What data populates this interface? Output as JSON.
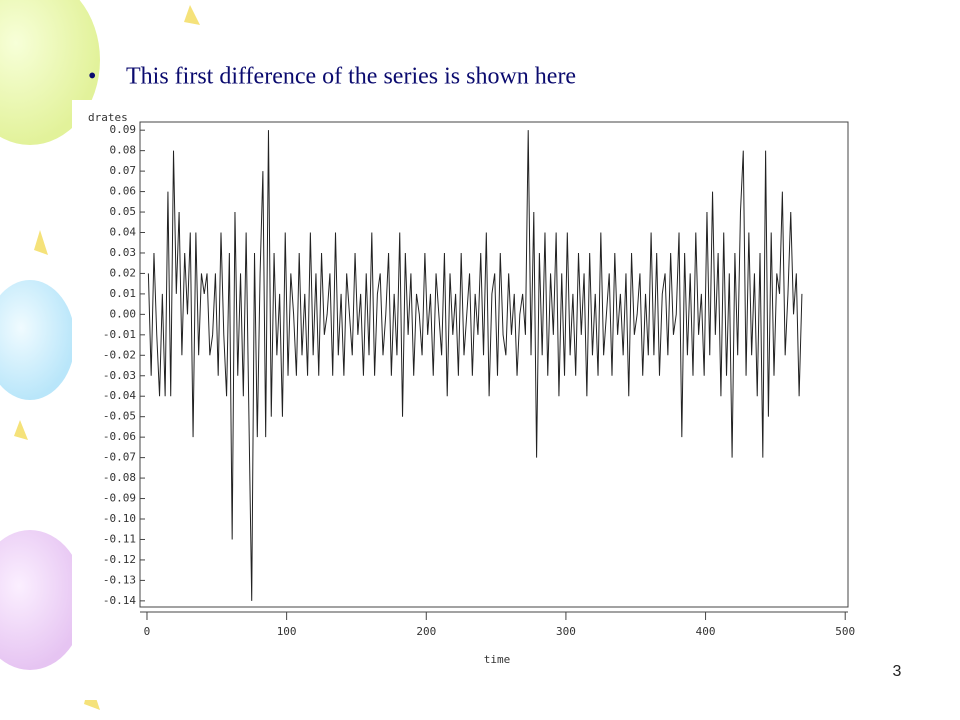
{
  "slide": {
    "bullet_text": "This first difference of the series is shown here",
    "page_number": "3"
  },
  "chart_data": {
    "type": "line",
    "y_label": "drates",
    "x_label": "time",
    "color": "#222222",
    "xlim": [
      -5,
      502
    ],
    "xticks": [
      0,
      100,
      200,
      300,
      400,
      500
    ],
    "ylim": [
      -0.143,
      0.094
    ],
    "yticks": [
      0.09,
      0.08,
      0.07,
      0.06,
      0.05,
      0.04,
      0.03,
      0.02,
      0.01,
      {
        "value": 0,
        "label": "0.00"
      },
      -0.01,
      -0.02,
      -0.03,
      -0.04,
      -0.05,
      -0.06,
      -0.07,
      -0.08,
      -0.09,
      {
        "value": -0.1,
        "label": "-0.10"
      },
      -0.11,
      -0.12,
      -0.13,
      -0.14
    ],
    "x": [
      1,
      3,
      5,
      7,
      9,
      11,
      13,
      15,
      17,
      19,
      21,
      23,
      25,
      27,
      29,
      31,
      33,
      35,
      37,
      39,
      41,
      43,
      45,
      47,
      49,
      51,
      53,
      55,
      57,
      59,
      61,
      63,
      65,
      67,
      69,
      71,
      73,
      75,
      77,
      79,
      81,
      83,
      85,
      87,
      89,
      91,
      93,
      95,
      97,
      99,
      101,
      103,
      105,
      107,
      109,
      111,
      113,
      115,
      117,
      119,
      121,
      123,
      125,
      127,
      129,
      131,
      133,
      135,
      137,
      139,
      141,
      143,
      145,
      147,
      149,
      151,
      153,
      155,
      157,
      159,
      161,
      163,
      165,
      167,
      169,
      171,
      173,
      175,
      177,
      179,
      181,
      183,
      185,
      187,
      189,
      191,
      193,
      195,
      197,
      199,
      201,
      203,
      205,
      207,
      209,
      211,
      213,
      215,
      217,
      219,
      221,
      223,
      225,
      227,
      229,
      231,
      233,
      235,
      237,
      239,
      241,
      243,
      245,
      247,
      249,
      251,
      253,
      255,
      257,
      259,
      261,
      263,
      265,
      267,
      269,
      271,
      273,
      275,
      277,
      279,
      281,
      283,
      285,
      287,
      289,
      291,
      293,
      295,
      297,
      299,
      301,
      303,
      305,
      307,
      309,
      311,
      313,
      315,
      317,
      319,
      321,
      323,
      325,
      327,
      329,
      331,
      333,
      335,
      337,
      339,
      341,
      343,
      345,
      347,
      349,
      351,
      353,
      355,
      357,
      359,
      361,
      363,
      365,
      367,
      369,
      371,
      373,
      375,
      377,
      379,
      381,
      383,
      385,
      387,
      389,
      391,
      393,
      395,
      397,
      399,
      401,
      403,
      405,
      407,
      409,
      411,
      413,
      415,
      417,
      419,
      421,
      423,
      425,
      427,
      429,
      431,
      433,
      435,
      437,
      439,
      441,
      443,
      445,
      447,
      449,
      451,
      453,
      455,
      457,
      459,
      461,
      463,
      465,
      467,
      469
    ],
    "values": [
      0.02,
      -0.03,
      0.03,
      -0.01,
      -0.04,
      0.01,
      -0.04,
      0.06,
      -0.04,
      0.08,
      0.01,
      0.05,
      -0.02,
      0.03,
      0.0,
      0.04,
      -0.06,
      0.04,
      -0.02,
      0.02,
      0.01,
      0.02,
      -0.02,
      -0.01,
      0.02,
      -0.03,
      0.04,
      -0.01,
      -0.04,
      0.03,
      -0.11,
      0.05,
      -0.03,
      0.02,
      -0.04,
      0.04,
      -0.05,
      -0.14,
      0.03,
      -0.06,
      0.02,
      0.07,
      -0.06,
      0.09,
      -0.05,
      0.03,
      -0.02,
      0.01,
      -0.05,
      0.04,
      -0.03,
      0.02,
      0.0,
      -0.03,
      0.03,
      -0.02,
      0.01,
      -0.03,
      0.04,
      -0.02,
      0.02,
      -0.03,
      0.03,
      -0.01,
      0.0,
      0.02,
      -0.03,
      0.04,
      -0.02,
      0.01,
      -0.03,
      0.02,
      0.0,
      -0.02,
      0.03,
      -0.01,
      0.01,
      -0.03,
      0.02,
      -0.02,
      0.04,
      -0.03,
      0.01,
      0.02,
      -0.02,
      0.0,
      0.03,
      -0.03,
      0.01,
      -0.02,
      0.04,
      -0.05,
      0.03,
      -0.01,
      0.02,
      -0.03,
      0.01,
      0.0,
      -0.02,
      0.03,
      -0.01,
      0.01,
      -0.03,
      0.02,
      0.0,
      -0.02,
      0.03,
      -0.04,
      0.02,
      -0.01,
      0.01,
      -0.03,
      0.03,
      -0.02,
      0.0,
      0.02,
      -0.03,
      0.01,
      -0.01,
      0.03,
      -0.02,
      0.04,
      -0.04,
      0.01,
      0.02,
      -0.03,
      0.03,
      -0.01,
      -0.02,
      0.02,
      -0.01,
      0.01,
      -0.03,
      0.0,
      0.01,
      -0.01,
      0.09,
      -0.02,
      0.05,
      -0.07,
      0.03,
      -0.02,
      0.04,
      -0.03,
      0.02,
      -0.01,
      0.04,
      -0.04,
      0.02,
      -0.03,
      0.04,
      -0.02,
      0.01,
      -0.03,
      0.03,
      -0.01,
      0.02,
      -0.04,
      0.03,
      -0.02,
      0.01,
      -0.03,
      0.04,
      -0.02,
      0.0,
      0.02,
      -0.03,
      0.03,
      -0.01,
      0.01,
      -0.02,
      0.02,
      -0.04,
      0.03,
      -0.01,
      0.0,
      0.02,
      -0.03,
      0.01,
      -0.02,
      0.04,
      -0.02,
      0.03,
      -0.03,
      0.01,
      0.02,
      -0.02,
      0.03,
      -0.01,
      0.0,
      0.04,
      -0.06,
      0.03,
      -0.02,
      0.02,
      -0.03,
      0.04,
      -0.01,
      0.01,
      -0.03,
      0.05,
      -0.02,
      0.06,
      -0.01,
      0.03,
      -0.04,
      0.04,
      -0.03,
      0.02,
      -0.07,
      0.03,
      -0.02,
      0.05,
      0.08,
      -0.03,
      0.04,
      -0.02,
      0.02,
      -0.04,
      0.03,
      -0.07,
      0.08,
      -0.05,
      0.04,
      -0.03,
      0.02,
      0.01,
      0.06,
      -0.02,
      0.01,
      0.05,
      0.0,
      0.02,
      -0.04,
      0.01
    ]
  }
}
